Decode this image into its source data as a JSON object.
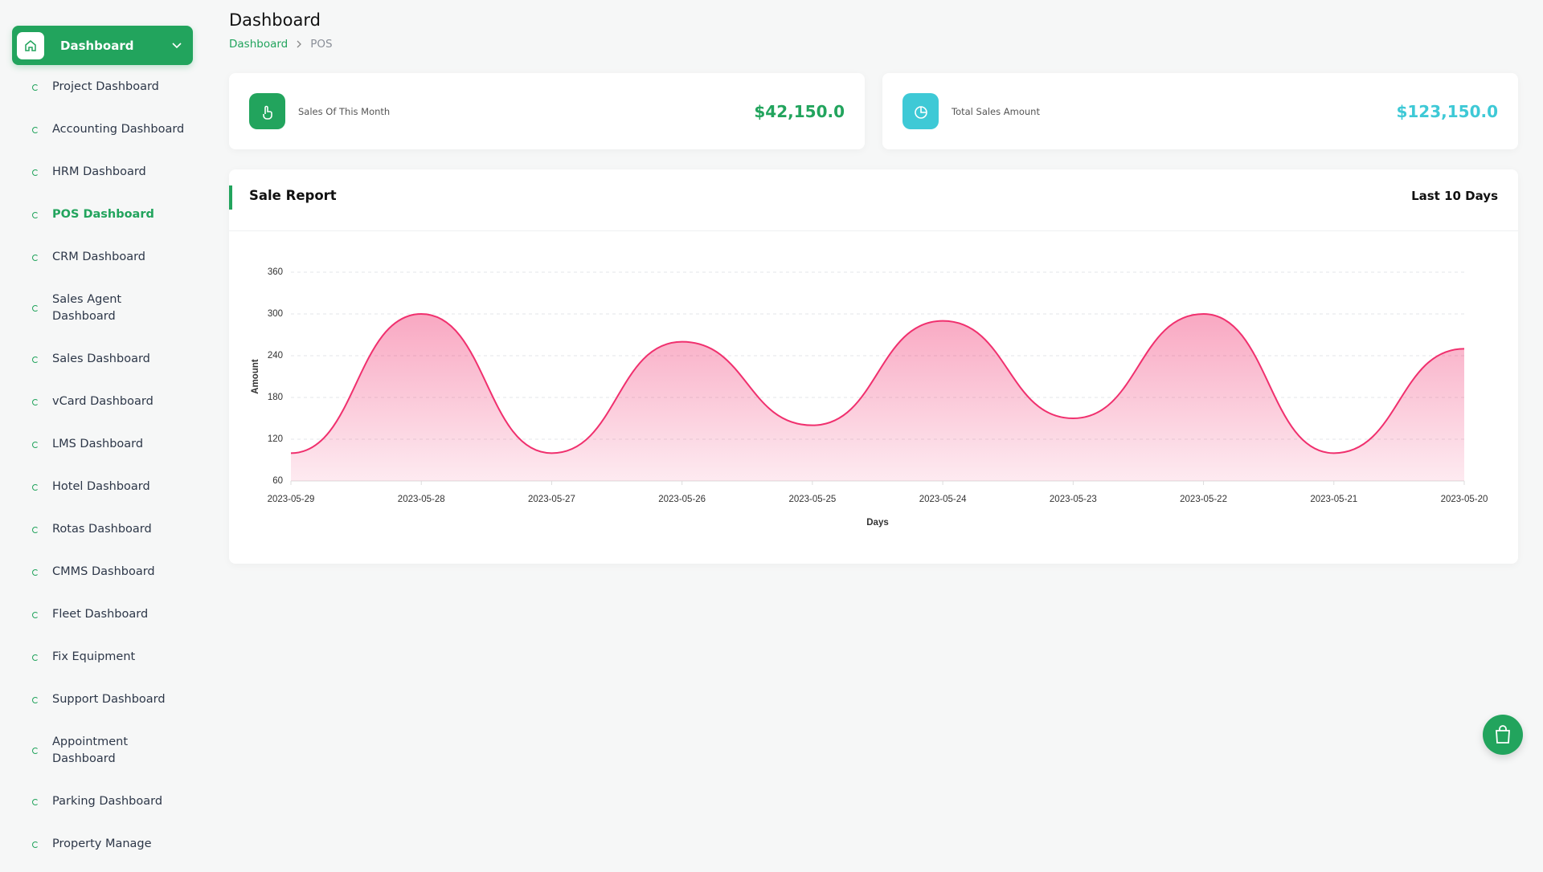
{
  "sidebar": {
    "menu_title": "Dashboard",
    "items": [
      {
        "label": "Project Dashboard"
      },
      {
        "label": "Accounting Dashboard"
      },
      {
        "label": "HRM Dashboard"
      },
      {
        "label": "POS Dashboard",
        "active": true
      },
      {
        "label": "CRM Dashboard"
      },
      {
        "label": "Sales Agent Dashboard"
      },
      {
        "label": "Sales Dashboard"
      },
      {
        "label": "vCard Dashboard"
      },
      {
        "label": "LMS Dashboard"
      },
      {
        "label": "Hotel Dashboard"
      },
      {
        "label": "Rotas Dashboard"
      },
      {
        "label": "CMMS Dashboard"
      },
      {
        "label": "Fleet Dashboard"
      },
      {
        "label": "Fix Equipment"
      },
      {
        "label": "Support Dashboard"
      },
      {
        "label": "Appointment Dashboard"
      },
      {
        "label": "Parking Dashboard"
      },
      {
        "label": "Property Manage"
      }
    ]
  },
  "header": {
    "title": "Dashboard",
    "breadcrumb": [
      "Dashboard",
      "POS"
    ]
  },
  "cards": [
    {
      "label": "Sales Of This Month",
      "value": "$42,150.0",
      "color": "#22a45d"
    },
    {
      "label": "Total Sales Amount",
      "value": "$123,150.0",
      "color": "#3ec9d6"
    }
  ],
  "chart_data": {
    "type": "area",
    "title": "Sale Report",
    "filter_label": "Last 10 Days",
    "x_label": "Days",
    "y_label": "Amount",
    "categories": [
      "2023-05-29",
      "2023-05-28",
      "2023-05-27",
      "2023-05-26",
      "2023-05-25",
      "2023-05-24",
      "2023-05-23",
      "2023-05-22",
      "2023-05-21",
      "2023-05-20"
    ],
    "values": [
      100,
      300,
      100,
      260,
      140,
      290,
      150,
      300,
      100,
      250
    ],
    "color": "#f0306e",
    "ylim": [
      60,
      360
    ],
    "yticks": [
      60,
      120,
      180,
      240,
      300,
      360
    ],
    "grid": true
  }
}
